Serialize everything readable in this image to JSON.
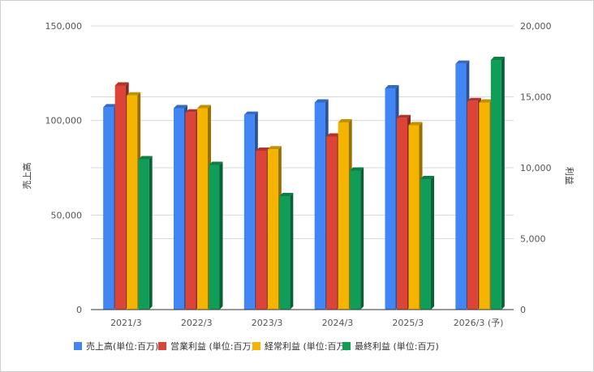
{
  "chart_data": {
    "type": "bar",
    "categories": [
      "2021/3",
      "2022/3",
      "2023/3",
      "2024/3",
      "2025/3",
      "2026/3 (予)"
    ],
    "left_axis": {
      "label": "売上高",
      "ylim": [
        0,
        150000
      ],
      "ticks": [
        "0",
        "50,000",
        "100,000",
        "150,000"
      ]
    },
    "right_axis": {
      "label": "利益",
      "ylim": [
        0,
        20000
      ],
      "ticks": [
        "0",
        "5,000",
        "10,000",
        "15,000",
        "20,000"
      ]
    },
    "series": [
      {
        "name": "売上高(単位:百万)",
        "axis": "left",
        "color": "#4285f4",
        "values": [
          107000,
          106500,
          103000,
          109500,
          117000,
          130000
        ]
      },
      {
        "name": "営業利益 (単位:百万)",
        "axis": "right",
        "color": "#db4437",
        "values": [
          15800,
          13900,
          11200,
          12200,
          13500,
          14700
        ]
      },
      {
        "name": "経常利益 (単位:百万)",
        "axis": "right",
        "color": "#f4b400",
        "values": [
          15100,
          14200,
          11300,
          13200,
          13000,
          14600
        ]
      },
      {
        "name": "最終利益 (単位:百万)",
        "axis": "right",
        "color": "#0f9d58",
        "values": [
          10600,
          10200,
          8000,
          9800,
          9200,
          17600
        ]
      }
    ],
    "grid": true,
    "legend_position": "bottom"
  }
}
